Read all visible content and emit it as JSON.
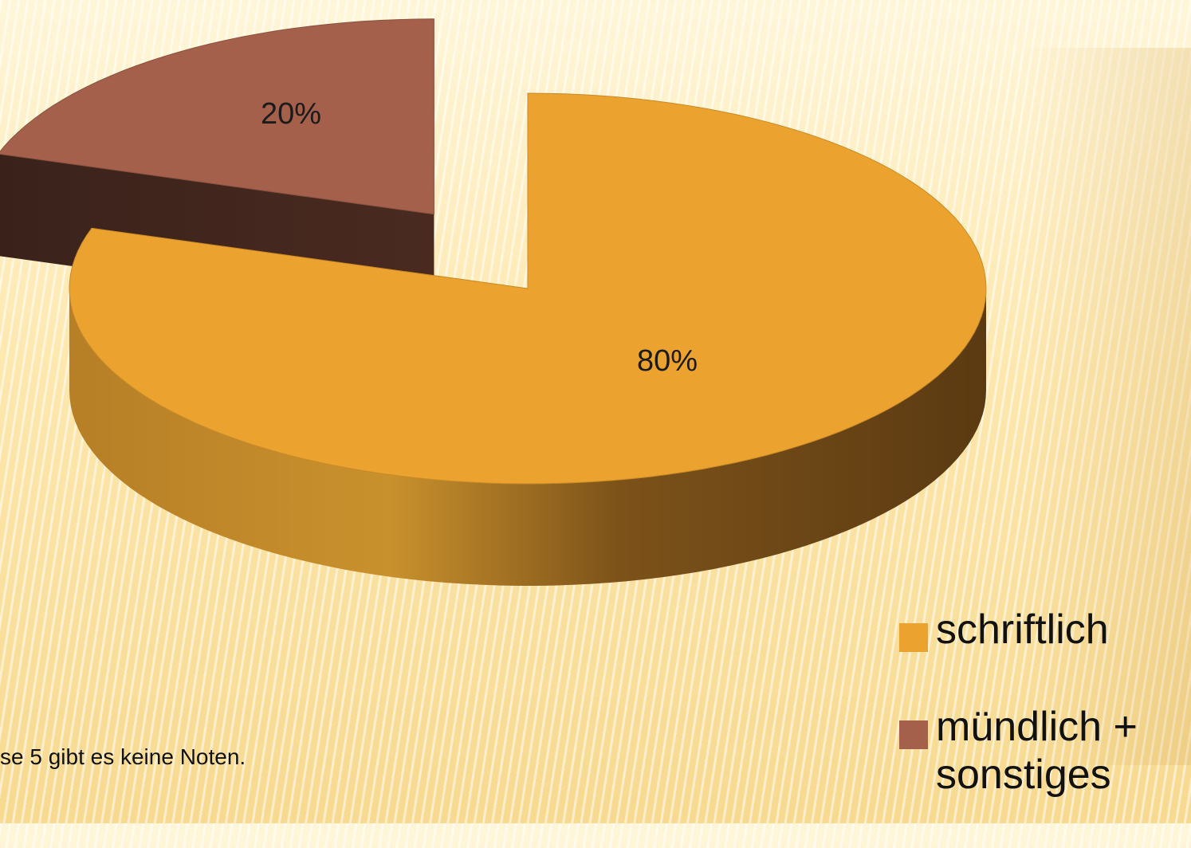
{
  "footnote": "se 5 gibt es keine Noten.",
  "chart_data": {
    "type": "pie",
    "categories": [
      "schriftlich",
      "mündlich + sonstiges"
    ],
    "values": [
      80,
      20
    ],
    "value_labels": [
      "80%",
      "20%"
    ],
    "colors": [
      "#eba22f",
      "#a4604a"
    ],
    "exploded": "mündlich + sonstiges",
    "legend_placement": "bottom-right",
    "title": ""
  }
}
